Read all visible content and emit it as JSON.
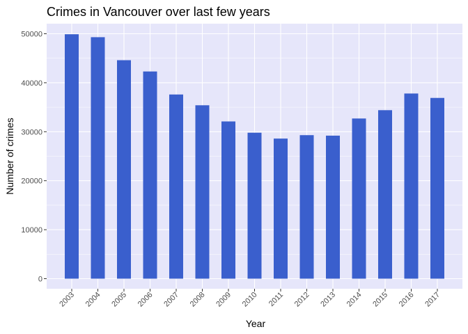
{
  "chart_data": {
    "type": "bar",
    "title": "Crimes in Vancouver over last few years",
    "xlabel": "Year",
    "ylabel": "Number of crimes",
    "categories": [
      "2003",
      "2004",
      "2005",
      "2006",
      "2007",
      "2008",
      "2009",
      "2010",
      "2011",
      "2012",
      "2013",
      "2014",
      "2015",
      "2016",
      "2017"
    ],
    "values": [
      49900,
      49300,
      44600,
      42300,
      37600,
      35400,
      32100,
      29800,
      28600,
      29300,
      29200,
      32700,
      34400,
      37800,
      36900
    ],
    "ylim": [
      0,
      52000
    ],
    "yticks": [
      0,
      10000,
      20000,
      30000,
      40000,
      50000
    ],
    "ytick_labels": [
      "0",
      "10000",
      "20000",
      "30000",
      "40000",
      "50000"
    ],
    "grid": true,
    "colors": {
      "bar": "#3a5fcd",
      "panel": "#e6e6fa",
      "grid": "#ffffff"
    }
  }
}
